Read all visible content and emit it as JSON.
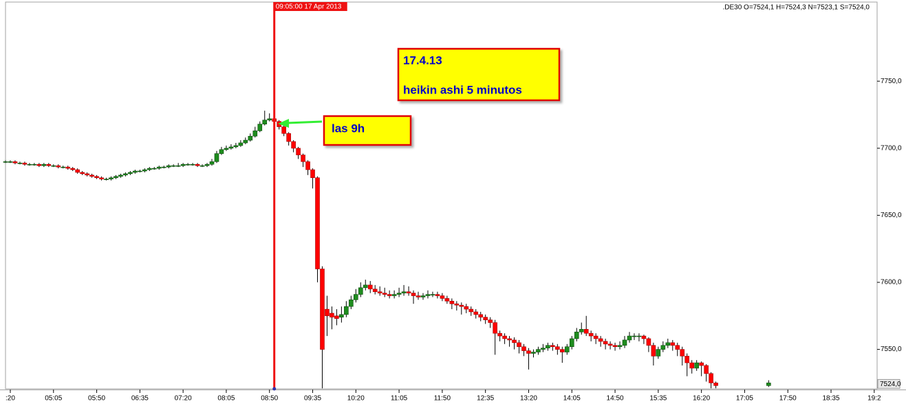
{
  "chart_data": {
    "type": "candlestick",
    "header": ".DE30 O=7524,1 H=7524,3 N=7523,1 S=7524,0",
    "annotations": [
      "17.4.13",
      "heikin ashi 5 minutos",
      "las 9h"
    ],
    "cursor": {
      "value": 535,
      "label": "09:05:00 17 Apr 2013"
    },
    "last_price": {
      "value": 7524,
      "label": "7524,0"
    },
    "up_color": "#1e8c1e",
    "down_color": "#ff0000",
    "xlim": [
      255,
      1163
    ],
    "ylim": [
      7520.6,
      7809
    ],
    "xticks": [
      {
        "value": 260,
        "label": ":20"
      },
      {
        "value": 305,
        "label": "05:05"
      },
      {
        "value": 350,
        "label": "05:50"
      },
      {
        "value": 395,
        "label": "06:35"
      },
      {
        "value": 440,
        "label": "07:20"
      },
      {
        "value": 485,
        "label": "08:05"
      },
      {
        "value": 530,
        "label": "08:50"
      },
      {
        "value": 575,
        "label": "09:35"
      },
      {
        "value": 620,
        "label": "10:20"
      },
      {
        "value": 665,
        "label": "11:05"
      },
      {
        "value": 710,
        "label": "11:50"
      },
      {
        "value": 755,
        "label": "12:35"
      },
      {
        "value": 800,
        "label": "13:20"
      },
      {
        "value": 845,
        "label": "14:05"
      },
      {
        "value": 890,
        "label": "14:50"
      },
      {
        "value": 935,
        "label": "15:35"
      },
      {
        "value": 980,
        "label": "16:20"
      },
      {
        "value": 1025,
        "label": "17:05"
      },
      {
        "value": 1070,
        "label": "17:50"
      },
      {
        "value": 1115,
        "label": "18:35"
      },
      {
        "value": 1160,
        "label": "19:2"
      }
    ],
    "yticks": [
      {
        "value": 7550,
        "label": "7550,0"
      },
      {
        "value": 7600,
        "label": "7600,0"
      },
      {
        "value": 7650,
        "label": "7650,0"
      },
      {
        "value": 7700,
        "label": "7700,0"
      },
      {
        "value": 7750,
        "label": "7750,0"
      }
    ],
    "x": [
      255,
      260,
      265,
      270,
      275,
      280,
      285,
      290,
      295,
      300,
      305,
      310,
      315,
      320,
      325,
      330,
      335,
      340,
      345,
      350,
      355,
      360,
      365,
      370,
      375,
      380,
      385,
      390,
      395,
      400,
      405,
      410,
      415,
      420,
      425,
      430,
      435,
      440,
      445,
      450,
      455,
      460,
      465,
      470,
      475,
      480,
      485,
      490,
      495,
      500,
      505,
      510,
      515,
      520,
      525,
      530,
      535,
      540,
      545,
      550,
      555,
      560,
      565,
      570,
      575,
      580,
      585,
      590,
      595,
      600,
      605,
      610,
      615,
      620,
      625,
      630,
      635,
      640,
      645,
      650,
      655,
      660,
      665,
      670,
      675,
      680,
      685,
      690,
      695,
      700,
      705,
      710,
      715,
      720,
      725,
      730,
      735,
      740,
      745,
      750,
      755,
      760,
      765,
      770,
      775,
      780,
      785,
      790,
      795,
      800,
      805,
      810,
      815,
      820,
      825,
      830,
      835,
      840,
      845,
      850,
      855,
      860,
      865,
      870,
      875,
      880,
      885,
      890,
      895,
      900,
      905,
      910,
      915,
      920,
      925,
      930,
      935,
      940,
      945,
      950,
      955,
      960,
      965,
      970,
      975,
      980,
      985,
      990,
      995,
      1050
    ],
    "ohlc": [
      [
        7690,
        7691,
        7689,
        7690
      ],
      [
        7690,
        7691,
        7689,
        7690
      ],
      [
        7690,
        7691,
        7688,
        7689
      ],
      [
        7689,
        7690,
        7688,
        7689
      ],
      [
        7689,
        7690,
        7687,
        7688
      ],
      [
        7688,
        7689,
        7687,
        7688
      ],
      [
        7688,
        7689,
        7687,
        7688
      ],
      [
        7688,
        7689,
        7686,
        7687
      ],
      [
        7687,
        7689,
        7686,
        7688
      ],
      [
        7688,
        7689,
        7686,
        7687
      ],
      [
        7687,
        7688,
        7686,
        7687
      ],
      [
        7687,
        7688,
        7685,
        7686
      ],
      [
        7686,
        7687,
        7685,
        7686
      ],
      [
        7686,
        7687,
        7684,
        7685
      ],
      [
        7685,
        7686,
        7683,
        7684
      ],
      [
        7684,
        7685,
        7681,
        7682
      ],
      [
        7682,
        7683,
        7680,
        7681
      ],
      [
        7681,
        7682,
        7679,
        7680
      ],
      [
        7680,
        7681,
        7678,
        7679
      ],
      [
        7679,
        7680,
        7677,
        7678
      ],
      [
        7678,
        7679,
        7676,
        7677
      ],
      [
        7677,
        7678,
        7676,
        7677
      ],
      [
        7677,
        7679,
        7676,
        7678
      ],
      [
        7678,
        7680,
        7677,
        7679
      ],
      [
        7679,
        7681,
        7678,
        7680
      ],
      [
        7680,
        7682,
        7679,
        7681
      ],
      [
        7681,
        7683,
        7680,
        7682
      ],
      [
        7682,
        7684,
        7681,
        7683
      ],
      [
        7683,
        7684,
        7682,
        7683
      ],
      [
        7683,
        7685,
        7682,
        7684
      ],
      [
        7684,
        7686,
        7683,
        7685
      ],
      [
        7685,
        7686,
        7684,
        7685
      ],
      [
        7685,
        7687,
        7684,
        7686
      ],
      [
        7686,
        7687,
        7685,
        7686
      ],
      [
        7686,
        7688,
        7685,
        7687
      ],
      [
        7687,
        7688,
        7686,
        7687
      ],
      [
        7687,
        7689,
        7686,
        7687
      ],
      [
        7687,
        7689,
        7686,
        7688
      ],
      [
        7688,
        7689,
        7687,
        7688
      ],
      [
        7688,
        7689,
        7687,
        7688
      ],
      [
        7688,
        7689,
        7686,
        7687
      ],
      [
        7687,
        7688,
        7686,
        7687
      ],
      [
        7687,
        7689,
        7686,
        7688
      ],
      [
        7688,
        7692,
        7687,
        7690
      ],
      [
        7690,
        7698,
        7689,
        7696
      ],
      [
        7696,
        7701,
        7695,
        7699
      ],
      [
        7699,
        7702,
        7698,
        7700
      ],
      [
        7700,
        7703,
        7699,
        7701
      ],
      [
        7701,
        7704,
        7700,
        7702
      ],
      [
        7702,
        7706,
        7701,
        7704
      ],
      [
        7704,
        7708,
        7703,
        7706
      ],
      [
        7706,
        7711,
        7705,
        7709
      ],
      [
        7709,
        7716,
        7708,
        7713
      ],
      [
        7713,
        7720,
        7712,
        7718
      ],
      [
        7718,
        7728,
        7717,
        7721
      ],
      [
        7721,
        7726,
        7720,
        7722
      ],
      [
        7722,
        7727,
        7718,
        7720
      ],
      [
        7720,
        7721,
        7714,
        7716
      ],
      [
        7716,
        7717,
        7709,
        7711
      ],
      [
        7711,
        7712,
        7702,
        7705
      ],
      [
        7705,
        7706,
        7697,
        7700
      ],
      [
        7700,
        7701,
        7692,
        7695
      ],
      [
        7695,
        7696,
        7686,
        7690
      ],
      [
        7690,
        7691,
        7680,
        7684
      ],
      [
        7684,
        7685,
        7670,
        7678
      ],
      [
        7678,
        7679,
        7600,
        7610
      ],
      [
        7610,
        7612,
        7521,
        7550
      ],
      [
        7580,
        7590,
        7560,
        7575
      ],
      [
        7577,
        7582,
        7565,
        7574
      ],
      [
        7575,
        7580,
        7568,
        7573
      ],
      [
        7574,
        7582,
        7570,
        7576
      ],
      [
        7576,
        7586,
        7574,
        7582
      ],
      [
        7582,
        7590,
        7580,
        7587
      ],
      [
        7587,
        7595,
        7585,
        7591
      ],
      [
        7591,
        7600,
        7589,
        7596
      ],
      [
        7596,
        7602,
        7594,
        7598
      ],
      [
        7598,
        7601,
        7592,
        7595
      ],
      [
        7595,
        7598,
        7591,
        7593
      ],
      [
        7593,
        7597,
        7590,
        7592
      ],
      [
        7592,
        7596,
        7589,
        7591
      ],
      [
        7591,
        7594,
        7588,
        7590
      ],
      [
        7590,
        7594,
        7588,
        7591
      ],
      [
        7591,
        7596,
        7589,
        7592
      ],
      [
        7592,
        7598,
        7590,
        7593
      ],
      [
        7593,
        7597,
        7590,
        7592
      ],
      [
        7592,
        7594,
        7584,
        7590
      ],
      [
        7590,
        7593,
        7587,
        7589
      ],
      [
        7589,
        7592,
        7587,
        7590
      ],
      [
        7590,
        7594,
        7588,
        7591
      ],
      [
        7591,
        7593,
        7589,
        7591
      ],
      [
        7591,
        7593,
        7588,
        7590
      ],
      [
        7590,
        7592,
        7586,
        7588
      ],
      [
        7588,
        7590,
        7584,
        7586
      ],
      [
        7586,
        7588,
        7580,
        7584
      ],
      [
        7584,
        7586,
        7579,
        7583
      ],
      [
        7583,
        7585,
        7576,
        7582
      ],
      [
        7582,
        7584,
        7577,
        7580
      ],
      [
        7580,
        7582,
        7575,
        7578
      ],
      [
        7578,
        7580,
        7573,
        7576
      ],
      [
        7576,
        7578,
        7571,
        7574
      ],
      [
        7574,
        7576,
        7569,
        7572
      ],
      [
        7572,
        7574,
        7566,
        7570
      ],
      [
        7570,
        7572,
        7546,
        7562
      ],
      [
        7562,
        7564,
        7556,
        7560
      ],
      [
        7560,
        7562,
        7554,
        7558
      ],
      [
        7558,
        7560,
        7552,
        7557
      ],
      [
        7557,
        7559,
        7550,
        7555
      ],
      [
        7555,
        7557,
        7547,
        7552
      ],
      [
        7552,
        7554,
        7545,
        7549
      ],
      [
        7549,
        7551,
        7535,
        7547
      ],
      [
        7547,
        7550,
        7544,
        7548
      ],
      [
        7548,
        7552,
        7546,
        7550
      ],
      [
        7550,
        7554,
        7548,
        7551
      ],
      [
        7551,
        7555,
        7549,
        7553
      ],
      [
        7553,
        7555,
        7549,
        7552
      ],
      [
        7552,
        7554,
        7546,
        7550
      ],
      [
        7550,
        7552,
        7540,
        7548
      ],
      [
        7548,
        7554,
        7546,
        7552
      ],
      [
        7552,
        7560,
        7550,
        7558
      ],
      [
        7558,
        7566,
        7556,
        7563
      ],
      [
        7563,
        7570,
        7561,
        7565
      ],
      [
        7565,
        7575,
        7560,
        7562
      ],
      [
        7562,
        7564,
        7556,
        7560
      ],
      [
        7560,
        7562,
        7554,
        7558
      ],
      [
        7558,
        7560,
        7552,
        7556
      ],
      [
        7556,
        7558,
        7550,
        7554
      ],
      [
        7554,
        7556,
        7550,
        7553
      ],
      [
        7553,
        7555,
        7549,
        7552
      ],
      [
        7552,
        7556,
        7550,
        7553
      ],
      [
        7553,
        7560,
        7551,
        7557
      ],
      [
        7557,
        7563,
        7555,
        7560
      ],
      [
        7560,
        7562,
        7557,
        7560
      ],
      [
        7560,
        7562,
        7556,
        7560
      ],
      [
        7560,
        7561,
        7554,
        7558
      ],
      [
        7558,
        7559,
        7548,
        7553
      ],
      [
        7553,
        7555,
        7538,
        7545
      ],
      [
        7545,
        7552,
        7543,
        7550
      ],
      [
        7550,
        7556,
        7548,
        7553
      ],
      [
        7553,
        7558,
        7551,
        7555
      ],
      [
        7555,
        7557,
        7549,
        7553
      ],
      [
        7553,
        7555,
        7545,
        7550
      ],
      [
        7550,
        7552,
        7538,
        7545
      ],
      [
        7545,
        7547,
        7530,
        7540
      ],
      [
        7540,
        7542,
        7532,
        7536
      ],
      [
        7536,
        7542,
        7534,
        7540
      ],
      [
        7540,
        7541,
        7530,
        7538
      ],
      [
        7538,
        7539,
        7526,
        7532
      ],
      [
        7532,
        7533,
        7521,
        7525
      ],
      [
        7525,
        7526,
        7521,
        7523
      ],
      [
        7523,
        7527,
        7522,
        7525
      ]
    ]
  }
}
